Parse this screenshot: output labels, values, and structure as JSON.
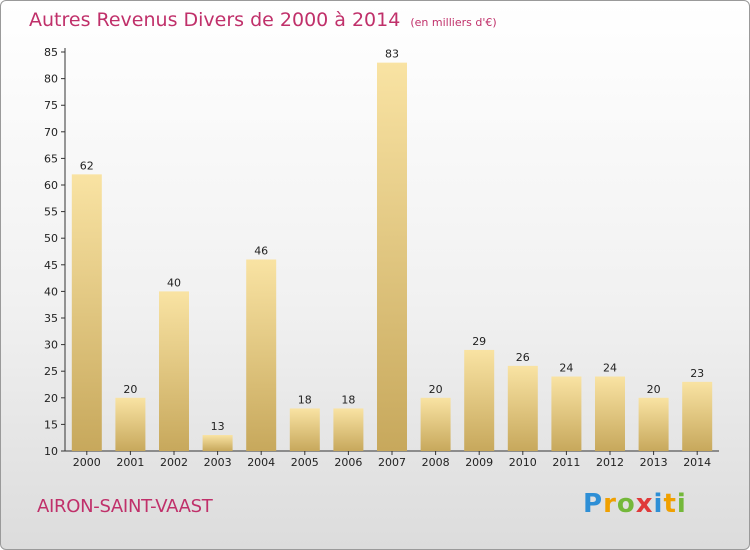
{
  "header": {
    "title": "Autres Revenus Divers de 2000 à 2014",
    "subtitle": "(en milliers d'€)"
  },
  "footer": {
    "commune": "AIRON-SAINT-VAAST",
    "logo_letters": [
      "P",
      "r",
      "o",
      "x",
      "i",
      "t",
      "i"
    ]
  },
  "colors": {
    "title": "#c0306a",
    "bar_top": "#f9e3a3",
    "bar_bottom": "#c7a85c"
  },
  "chart_data": {
    "type": "bar",
    "title": "Autres Revenus Divers de 2000 à 2014",
    "subtitle": "(en milliers d'€)",
    "categories": [
      "2000",
      "2001",
      "2002",
      "2003",
      "2004",
      "2005",
      "2006",
      "2007",
      "2008",
      "2009",
      "2010",
      "2011",
      "2012",
      "2013",
      "2014"
    ],
    "values": [
      62,
      20,
      40,
      13,
      46,
      18,
      18,
      83,
      20,
      29,
      26,
      24,
      24,
      20,
      23
    ],
    "ylim": [
      10,
      85
    ],
    "yticks": [
      10,
      15,
      20,
      25,
      30,
      35,
      40,
      45,
      50,
      55,
      60,
      65,
      70,
      75,
      80,
      85
    ],
    "grid": false,
    "legend": "none"
  }
}
